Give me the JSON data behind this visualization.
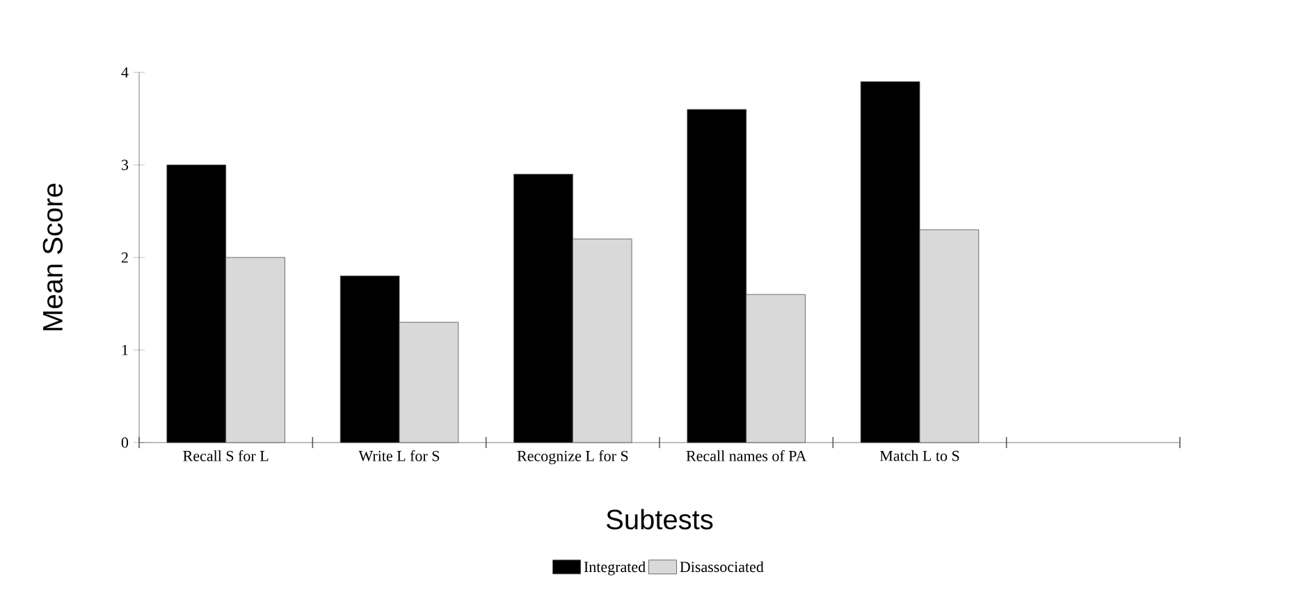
{
  "chart_data": {
    "type": "bar",
    "xlabel": "Subtests",
    "ylabel": "Mean Score",
    "categories": [
      "Recall S for L",
      "Write L for S",
      "Recognize L for S",
      "Recall names of PA",
      "Match L to S",
      null
    ],
    "series": [
      {
        "name": "Integrated",
        "color": "#000000",
        "values": [
          3.0,
          1.8,
          2.9,
          3.6,
          3.9,
          null
        ]
      },
      {
        "name": "Disassociated",
        "color": "#d9d9d9",
        "values": [
          2.0,
          1.3,
          2.2,
          1.6,
          2.3,
          null
        ]
      }
    ],
    "ylim": [
      0,
      4
    ],
    "yticks": [
      0,
      1,
      2,
      3,
      4
    ],
    "legend": "bottom"
  }
}
